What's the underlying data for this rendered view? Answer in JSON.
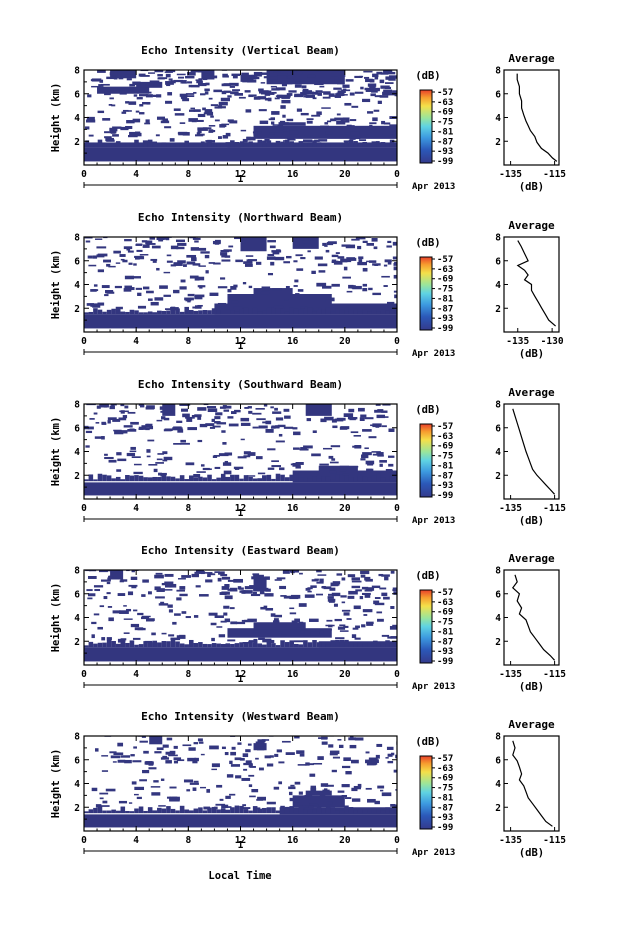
{
  "footer": {
    "xlabel": "Local Time"
  },
  "chart_data": [
    {
      "type": "heatmap",
      "title": "Echo Intensity (Vertical Beam)",
      "ylabel": "Height (km)",
      "xticks": [
        "0",
        "4",
        "8",
        "12",
        "16",
        "20",
        "0"
      ],
      "date_tick": "1",
      "date_label": "Apr 2013",
      "yticks": [
        "2",
        "4",
        "6",
        "8"
      ],
      "ylim": [
        0,
        8
      ],
      "xlim": [
        0,
        24
      ],
      "colorbar": {
        "unit": "(dB)",
        "ticks": [
          "-57",
          "-63",
          "-69",
          "-75",
          "-81",
          "-87",
          "-93",
          "-99"
        ]
      },
      "profile": {
        "title": "Average",
        "xlabel": "(dB)",
        "xticks": [
          "-135",
          "-115"
        ],
        "yticks": [
          "2",
          "4",
          "6",
          "8"
        ],
        "xlim": [
          -138,
          -113
        ],
        "x": [
          -132,
          -132,
          -131,
          -131,
          -130,
          -130,
          -129,
          -128,
          -127,
          -126,
          -124,
          -123,
          -121,
          -118,
          -116,
          -114
        ],
        "y": [
          7.7,
          7.2,
          6.6,
          6.0,
          5.4,
          4.8,
          4.2,
          3.7,
          3.3,
          2.9,
          2.4,
          1.9,
          1.4,
          1.0,
          0.6,
          0.3
        ]
      },
      "blocks": [
        [
          0,
          0.3,
          24,
          1.5
        ],
        [
          0,
          1.5,
          12,
          1.9
        ],
        [
          11,
          1.5,
          24,
          1.9
        ],
        [
          13,
          2.2,
          24,
          3.3
        ],
        [
          15,
          3.3,
          17,
          3.6
        ],
        [
          1,
          6.0,
          5,
          6.6
        ],
        [
          4,
          6.5,
          6,
          7.0
        ],
        [
          14,
          6.8,
          20,
          8.0
        ],
        [
          2,
          7.3,
          4,
          8.0
        ],
        [
          12,
          7.0,
          13,
          7.6
        ],
        [
          9,
          7.2,
          10,
          8.0
        ]
      ],
      "specks": 420
    },
    {
      "type": "heatmap",
      "title": "Echo Intensity (Northward Beam)",
      "ylabel": "Height (km)",
      "xticks": [
        "0",
        "4",
        "8",
        "12",
        "16",
        "20",
        "0"
      ],
      "date_tick": "1",
      "date_label": "Apr 2013",
      "yticks": [
        "2",
        "4",
        "6",
        "8"
      ],
      "ylim": [
        0,
        8
      ],
      "xlim": [
        0,
        24
      ],
      "colorbar": {
        "unit": "(dB)",
        "ticks": [
          "-57",
          "-63",
          "-69",
          "-75",
          "-81",
          "-87",
          "-93",
          "-99"
        ]
      },
      "profile": {
        "title": "Average",
        "xlabel": "(dB)",
        "xticks": [
          "-135",
          "-130"
        ],
        "yticks": [
          "2",
          "4",
          "6",
          "8"
        ],
        "xlim": [
          -137,
          -129
        ],
        "x": [
          -135,
          -134.5,
          -134,
          -133.5,
          -135,
          -134,
          -133.5,
          -134,
          -133,
          -133,
          -132.5,
          -132,
          -131.5,
          -131,
          -130.5,
          -129.5
        ],
        "y": [
          7.7,
          7.2,
          6.6,
          6.0,
          5.6,
          5.2,
          4.8,
          4.4,
          4.0,
          3.5,
          3.0,
          2.5,
          2.0,
          1.5,
          1.0,
          0.5
        ]
      },
      "blocks": [
        [
          0,
          0.3,
          24,
          1.5
        ],
        [
          10,
          1.5,
          24,
          2.4
        ],
        [
          11,
          2.4,
          19,
          3.2
        ],
        [
          13,
          3.2,
          16,
          3.7
        ],
        [
          12,
          6.8,
          14,
          8.0
        ],
        [
          16,
          7.0,
          18,
          8.0
        ]
      ],
      "specks": 260
    },
    {
      "type": "heatmap",
      "title": "Echo Intensity (Southward Beam)",
      "ylabel": "Height (km)",
      "xticks": [
        "0",
        "4",
        "8",
        "12",
        "16",
        "20",
        "0"
      ],
      "date_tick": "1",
      "date_label": "Apr 2013",
      "yticks": [
        "2",
        "4",
        "6",
        "8"
      ],
      "ylim": [
        0,
        8
      ],
      "xlim": [
        0,
        24
      ],
      "colorbar": {
        "unit": "(dB)",
        "ticks": [
          "-57",
          "-63",
          "-69",
          "-75",
          "-81",
          "-87",
          "-93",
          "-99"
        ]
      },
      "profile": {
        "title": "Average",
        "xlabel": "(dB)",
        "xticks": [
          "-135",
          "-115"
        ],
        "yticks": [
          "2",
          "4",
          "6",
          "8"
        ],
        "xlim": [
          -138,
          -113
        ],
        "x": [
          -134,
          -133,
          -132,
          -131,
          -130,
          -129,
          -128,
          -127,
          -126,
          -125,
          -123,
          -121,
          -119,
          -117,
          -115
        ],
        "y": [
          7.6,
          7.0,
          6.4,
          5.8,
          5.2,
          4.6,
          4.0,
          3.5,
          3.0,
          2.5,
          2.0,
          1.6,
          1.2,
          0.8,
          0.4
        ]
      },
      "blocks": [
        [
          0,
          0.3,
          24,
          1.4
        ],
        [
          16,
          1.4,
          24,
          2.4
        ],
        [
          18,
          2.4,
          21,
          2.8
        ],
        [
          6,
          7.0,
          7,
          8.0
        ],
        [
          17,
          7.0,
          19,
          8.0
        ]
      ],
      "specks": 260
    },
    {
      "type": "heatmap",
      "title": "Echo Intensity (Eastward Beam)",
      "ylabel": "Height (km)",
      "xticks": [
        "0",
        "4",
        "8",
        "12",
        "16",
        "20",
        "0"
      ],
      "date_tick": "1",
      "date_label": "Apr 2013",
      "yticks": [
        "2",
        "4",
        "6",
        "8"
      ],
      "ylim": [
        0,
        8
      ],
      "xlim": [
        0,
        24
      ],
      "colorbar": {
        "unit": "(dB)",
        "ticks": [
          "-57",
          "-63",
          "-69",
          "-75",
          "-81",
          "-87",
          "-93",
          "-99"
        ]
      },
      "profile": {
        "title": "Average",
        "xlabel": "(dB)",
        "xticks": [
          "-135",
          "-115"
        ],
        "yticks": [
          "2",
          "4",
          "6",
          "8"
        ],
        "xlim": [
          -138,
          -113
        ],
        "x": [
          -133,
          -132,
          -134,
          -131,
          -132,
          -130,
          -131,
          -128,
          -127,
          -126,
          -124,
          -122,
          -120,
          -117,
          -115
        ],
        "y": [
          7.6,
          7.0,
          6.5,
          6.0,
          5.4,
          4.8,
          4.3,
          3.8,
          3.3,
          2.8,
          2.3,
          1.8,
          1.3,
          0.8,
          0.4
        ]
      },
      "blocks": [
        [
          0,
          0.3,
          24,
          1.5
        ],
        [
          18,
          1.5,
          24,
          2.0
        ],
        [
          11,
          2.3,
          19,
          3.1
        ],
        [
          13,
          3.0,
          17,
          3.6
        ],
        [
          13,
          6.2,
          14,
          7.4
        ],
        [
          2,
          7.2,
          3,
          8.0
        ]
      ],
      "specks": 300
    },
    {
      "type": "heatmap",
      "title": "Echo Intensity (Westward Beam)",
      "ylabel": "Height (km)",
      "xticks": [
        "0",
        "4",
        "8",
        "12",
        "16",
        "20",
        "0"
      ],
      "date_tick": "1",
      "date_label": "Apr 2013",
      "yticks": [
        "2",
        "4",
        "6",
        "8"
      ],
      "ylim": [
        0,
        8
      ],
      "xlim": [
        0,
        24
      ],
      "colorbar": {
        "unit": "(dB)",
        "ticks": [
          "-57",
          "-63",
          "-69",
          "-75",
          "-81",
          "-87",
          "-93",
          "-99"
        ]
      },
      "profile": {
        "title": "Average",
        "xlabel": "(dB)",
        "xticks": [
          "-135",
          "-115"
        ],
        "yticks": [
          "2",
          "4",
          "6",
          "8"
        ],
        "xlim": [
          -138,
          -113
        ],
        "x": [
          -134,
          -133,
          -134,
          -132,
          -131,
          -130,
          -131,
          -129,
          -128,
          -127,
          -125,
          -123,
          -121,
          -119,
          -116
        ],
        "y": [
          7.6,
          7.0,
          6.4,
          5.9,
          5.4,
          4.8,
          4.3,
          3.8,
          3.3,
          2.8,
          2.3,
          1.8,
          1.3,
          0.8,
          0.4
        ]
      },
      "blocks": [
        [
          0,
          0.3,
          24,
          1.4
        ],
        [
          15,
          1.4,
          24,
          2.0
        ],
        [
          16,
          2.0,
          20,
          3.0
        ],
        [
          17,
          3.0,
          19,
          3.4
        ],
        [
          13,
          6.8,
          14,
          7.4
        ],
        [
          5,
          7.3,
          6,
          8.0
        ]
      ],
      "specks": 230
    }
  ]
}
